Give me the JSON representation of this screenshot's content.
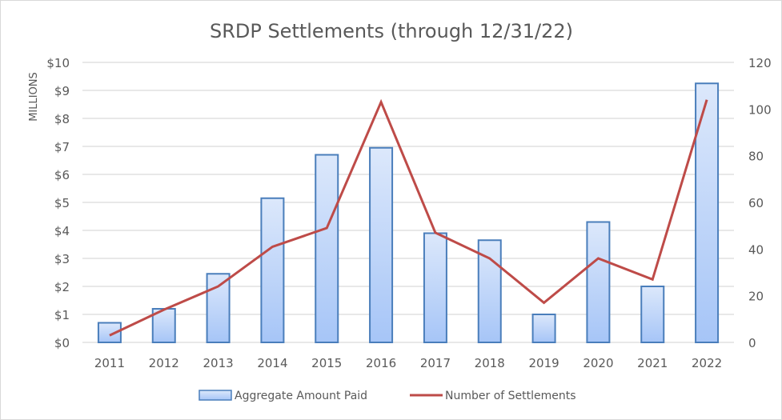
{
  "chart_data": {
    "type": "bar+line",
    "title": "SRDP Settlements (through 12/31/22)",
    "categories": [
      "2011",
      "2012",
      "2013",
      "2014",
      "2015",
      "2016",
      "2017",
      "2018",
      "2019",
      "2020",
      "2021",
      "2022"
    ],
    "ylabel": "MILLIONS",
    "y_left": {
      "ylim": [
        0,
        10
      ],
      "ticks": [
        0,
        1,
        2,
        3,
        4,
        5,
        6,
        7,
        8,
        9,
        10
      ],
      "tick_labels": [
        "$0",
        "$1",
        "$2",
        "$3",
        "$4",
        "$5",
        "$6",
        "$7",
        "$8",
        "$9",
        "$10"
      ]
    },
    "y_right": {
      "ylim": [
        0,
        120
      ],
      "ticks": [
        0,
        20,
        40,
        60,
        80,
        100,
        120
      ],
      "tick_labels": [
        "0",
        "20",
        "40",
        "60",
        "80",
        "100",
        "120"
      ]
    },
    "grid": true,
    "legend_position": "bottom",
    "series": [
      {
        "name": "Aggregate Amount Paid",
        "type": "bar",
        "axis": "left",
        "color": "#4a7ebb",
        "fill_top": "#dce8fb",
        "fill_bottom": "#a6c5f7",
        "values": [
          0.7,
          1.2,
          2.45,
          5.15,
          6.7,
          6.95,
          3.9,
          3.65,
          1.0,
          4.3,
          2.0,
          9.25
        ]
      },
      {
        "name": "Number of Settlements",
        "type": "line",
        "axis": "right",
        "color": "#be4b48",
        "values": [
          3,
          14,
          24,
          41,
          49,
          103,
          47,
          36,
          17,
          36,
          27,
          104
        ]
      }
    ]
  }
}
